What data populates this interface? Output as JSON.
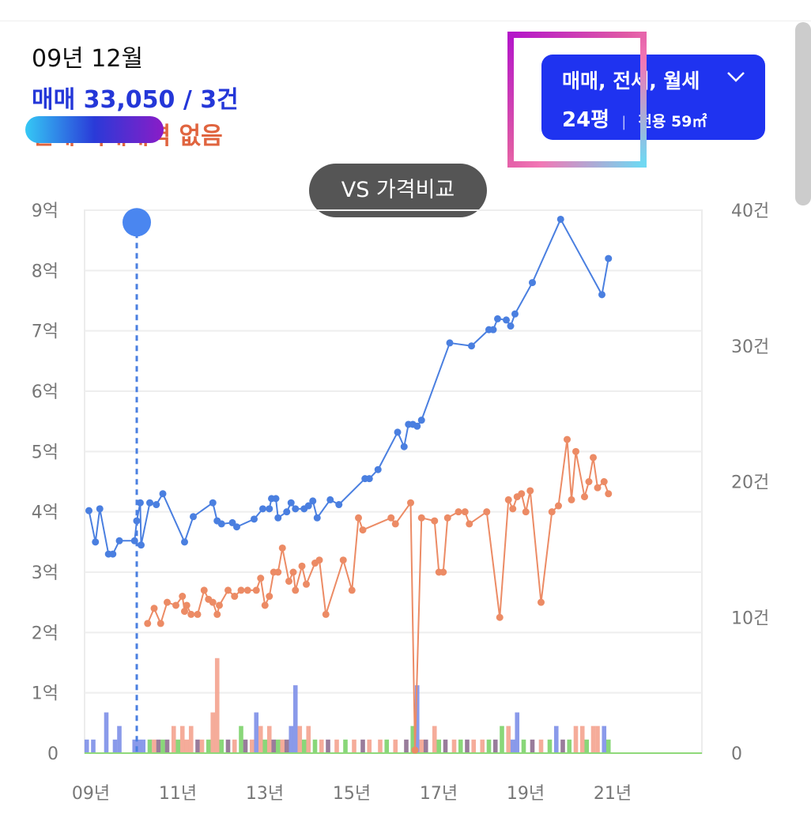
{
  "info": {
    "date": "09년 12월",
    "sale": "매매 33,050 / 3건",
    "jeonse": "전세 거래내역 없음"
  },
  "filter": {
    "types": "매매, 전세, 월세",
    "pyeong": "24평",
    "area": "전용 59㎡",
    "icon": "chevron-down-icon"
  },
  "vs_button": "VS 가격비교",
  "colors": {
    "sale": "#4a7fe0",
    "jeonse": "#ec8b65",
    "bar_sale": "#7d8fe8",
    "bar_jeonse": "#f4a38f",
    "bar_monthly": "#7cd36a",
    "bar_dark": "#8e6e90",
    "accent_button": "#1f33f0"
  },
  "chart_data": {
    "type": "line",
    "x_ticks": [
      "09년",
      "11년",
      "13년",
      "15년",
      "17년",
      "19년",
      "21년"
    ],
    "y_left_ticks": [
      "0",
      "1억",
      "2억",
      "3억",
      "4억",
      "5억",
      "6억",
      "7억",
      "8억",
      "9억"
    ],
    "y_right_ticks": [
      "0",
      "10건",
      "20건",
      "30건",
      "40건"
    ],
    "xlim": [
      2009.0,
      2023.2
    ],
    "ylim_left": [
      0,
      9
    ],
    "ylim_right": [
      0,
      40
    ],
    "grid": true,
    "cursor": {
      "x": 2010.2,
      "y": 8.8
    },
    "series": [
      {
        "key": "sale",
        "points": [
          [
            2009.1,
            4.02
          ],
          [
            2009.25,
            3.5
          ],
          [
            2009.35,
            4.05
          ],
          [
            2009.55,
            3.3
          ],
          [
            2009.65,
            3.3
          ],
          [
            2009.8,
            3.52
          ],
          [
            2010.15,
            3.52
          ],
          [
            2010.2,
            3.85
          ],
          [
            2010.28,
            4.15
          ],
          [
            2010.3,
            3.45
          ],
          [
            2010.5,
            4.15
          ],
          [
            2010.65,
            4.12
          ],
          [
            2010.8,
            4.3
          ],
          [
            2011.3,
            3.5
          ],
          [
            2011.5,
            3.92
          ],
          [
            2011.95,
            4.15
          ],
          [
            2012.05,
            3.85
          ],
          [
            2012.15,
            3.8
          ],
          [
            2012.4,
            3.82
          ],
          [
            2012.5,
            3.75
          ],
          [
            2012.9,
            3.88
          ],
          [
            2013.1,
            4.05
          ],
          [
            2013.25,
            4.05
          ],
          [
            2013.3,
            4.22
          ],
          [
            2013.4,
            4.22
          ],
          [
            2013.45,
            3.9
          ],
          [
            2013.65,
            4.0
          ],
          [
            2013.75,
            4.15
          ],
          [
            2013.85,
            4.05
          ],
          [
            2014.05,
            4.05
          ],
          [
            2014.15,
            4.1
          ],
          [
            2014.25,
            4.18
          ],
          [
            2014.35,
            3.9
          ],
          [
            2014.65,
            4.2
          ],
          [
            2014.85,
            4.12
          ],
          [
            2015.45,
            4.55
          ],
          [
            2015.55,
            4.55
          ],
          [
            2015.75,
            4.7
          ],
          [
            2016.2,
            5.32
          ],
          [
            2016.35,
            5.08
          ],
          [
            2016.45,
            5.45
          ],
          [
            2016.55,
            5.45
          ],
          [
            2016.65,
            5.42
          ],
          [
            2016.75,
            5.52
          ],
          [
            2017.4,
            6.8
          ],
          [
            2017.9,
            6.75
          ],
          [
            2018.3,
            7.02
          ],
          [
            2018.4,
            7.02
          ],
          [
            2018.5,
            7.2
          ],
          [
            2018.7,
            7.18
          ],
          [
            2018.8,
            7.08
          ],
          [
            2018.9,
            7.28
          ],
          [
            2019.3,
            7.8
          ],
          [
            2019.95,
            8.85
          ],
          [
            2020.9,
            7.6
          ],
          [
            2021.05,
            8.2
          ]
        ]
      },
      {
        "key": "jeonse",
        "points": [
          [
            2010.45,
            2.15
          ],
          [
            2010.6,
            2.4
          ],
          [
            2010.75,
            2.15
          ],
          [
            2010.9,
            2.5
          ],
          [
            2011.1,
            2.45
          ],
          [
            2011.25,
            2.6
          ],
          [
            2011.3,
            2.35
          ],
          [
            2011.35,
            2.45
          ],
          [
            2011.45,
            2.3
          ],
          [
            2011.6,
            2.3
          ],
          [
            2011.75,
            2.7
          ],
          [
            2011.85,
            2.55
          ],
          [
            2011.95,
            2.5
          ],
          [
            2012.05,
            2.3
          ],
          [
            2012.1,
            2.45
          ],
          [
            2012.3,
            2.7
          ],
          [
            2012.45,
            2.6
          ],
          [
            2012.6,
            2.7
          ],
          [
            2012.75,
            2.7
          ],
          [
            2012.95,
            2.7
          ],
          [
            2013.05,
            2.9
          ],
          [
            2013.15,
            2.45
          ],
          [
            2013.25,
            2.6
          ],
          [
            2013.35,
            3.0
          ],
          [
            2013.45,
            3.0
          ],
          [
            2013.55,
            3.4
          ],
          [
            2013.7,
            2.85
          ],
          [
            2013.8,
            3.0
          ],
          [
            2013.85,
            2.7
          ],
          [
            2014.0,
            3.1
          ],
          [
            2014.1,
            2.8
          ],
          [
            2014.3,
            3.15
          ],
          [
            2014.4,
            3.2
          ],
          [
            2014.55,
            2.3
          ],
          [
            2014.95,
            3.2
          ],
          [
            2015.15,
            2.7
          ],
          [
            2015.3,
            3.9
          ],
          [
            2015.4,
            3.7
          ],
          [
            2016.05,
            3.9
          ],
          [
            2016.15,
            3.8
          ],
          [
            2016.5,
            4.15
          ],
          [
            2016.6,
            0.05
          ],
          [
            2016.75,
            3.9
          ],
          [
            2017.05,
            3.85
          ],
          [
            2017.15,
            3.0
          ],
          [
            2017.25,
            3.0
          ],
          [
            2017.35,
            3.9
          ],
          [
            2017.6,
            4.0
          ],
          [
            2017.75,
            4.0
          ],
          [
            2017.85,
            3.8
          ],
          [
            2018.25,
            4.0
          ],
          [
            2018.55,
            2.25
          ],
          [
            2018.75,
            4.2
          ],
          [
            2018.85,
            4.05
          ],
          [
            2018.95,
            4.25
          ],
          [
            2019.05,
            4.3
          ],
          [
            2019.15,
            4.0
          ],
          [
            2019.25,
            4.35
          ],
          [
            2019.5,
            2.5
          ],
          [
            2019.75,
            4.0
          ],
          [
            2019.9,
            4.1
          ],
          [
            2020.1,
            5.2
          ],
          [
            2020.2,
            4.2
          ],
          [
            2020.3,
            5.0
          ],
          [
            2020.5,
            4.25
          ],
          [
            2020.6,
            4.5
          ],
          [
            2020.7,
            4.9
          ],
          [
            2020.8,
            4.4
          ],
          [
            2020.95,
            4.5
          ],
          [
            2021.05,
            4.3
          ]
        ]
      }
    ],
    "volume_bars": [
      {
        "x": 2009.05,
        "n": 1,
        "c": "sale"
      },
      {
        "x": 2009.2,
        "n": 1,
        "c": "sale"
      },
      {
        "x": 2009.5,
        "n": 3,
        "c": "sale"
      },
      {
        "x": 2009.7,
        "n": 1,
        "c": "sale"
      },
      {
        "x": 2009.8,
        "n": 2,
        "c": "sale"
      },
      {
        "x": 2010.15,
        "n": 1,
        "c": "sale"
      },
      {
        "x": 2010.25,
        "n": 1,
        "c": "sale"
      },
      {
        "x": 2010.35,
        "n": 1,
        "c": "sale"
      },
      {
        "x": 2010.5,
        "n": 1,
        "c": "monthly"
      },
      {
        "x": 2010.6,
        "n": 1,
        "c": "jeonse"
      },
      {
        "x": 2010.7,
        "n": 1,
        "c": "dark"
      },
      {
        "x": 2010.8,
        "n": 1,
        "c": "monthly"
      },
      {
        "x": 2010.9,
        "n": 1,
        "c": "dark"
      },
      {
        "x": 2011.05,
        "n": 2,
        "c": "jeonse"
      },
      {
        "x": 2011.15,
        "n": 1,
        "c": "monthly"
      },
      {
        "x": 2011.25,
        "n": 2,
        "c": "jeonse"
      },
      {
        "x": 2011.35,
        "n": 1,
        "c": "jeonse"
      },
      {
        "x": 2011.45,
        "n": 2,
        "c": "jeonse"
      },
      {
        "x": 2011.6,
        "n": 1,
        "c": "dark"
      },
      {
        "x": 2011.7,
        "n": 1,
        "c": "jeonse"
      },
      {
        "x": 2011.85,
        "n": 1,
        "c": "monthly"
      },
      {
        "x": 2011.95,
        "n": 3,
        "c": "jeonse"
      },
      {
        "x": 2012.05,
        "n": 7,
        "c": "jeonse"
      },
      {
        "x": 2012.15,
        "n": 1,
        "c": "monthly"
      },
      {
        "x": 2012.3,
        "n": 1,
        "c": "dark"
      },
      {
        "x": 2012.45,
        "n": 1,
        "c": "jeonse"
      },
      {
        "x": 2012.6,
        "n": 2,
        "c": "monthly"
      },
      {
        "x": 2012.7,
        "n": 1,
        "c": "dark"
      },
      {
        "x": 2012.85,
        "n": 1,
        "c": "jeonse"
      },
      {
        "x": 2012.95,
        "n": 3,
        "c": "sale"
      },
      {
        "x": 2013.05,
        "n": 2,
        "c": "jeonse"
      },
      {
        "x": 2013.15,
        "n": 1,
        "c": "monthly"
      },
      {
        "x": 2013.25,
        "n": 2,
        "c": "jeonse"
      },
      {
        "x": 2013.35,
        "n": 1,
        "c": "dark"
      },
      {
        "x": 2013.45,
        "n": 1,
        "c": "monthly"
      },
      {
        "x": 2013.55,
        "n": 1,
        "c": "jeonse"
      },
      {
        "x": 2013.65,
        "n": 1,
        "c": "dark"
      },
      {
        "x": 2013.75,
        "n": 2,
        "c": "sale"
      },
      {
        "x": 2013.85,
        "n": 5,
        "c": "sale"
      },
      {
        "x": 2013.95,
        "n": 2,
        "c": "jeonse"
      },
      {
        "x": 2014.05,
        "n": 1,
        "c": "monthly"
      },
      {
        "x": 2014.15,
        "n": 2,
        "c": "jeonse"
      },
      {
        "x": 2014.3,
        "n": 1,
        "c": "monthly"
      },
      {
        "x": 2014.45,
        "n": 1,
        "c": "jeonse"
      },
      {
        "x": 2014.6,
        "n": 1,
        "c": "dark"
      },
      {
        "x": 2014.8,
        "n": 1,
        "c": "jeonse"
      },
      {
        "x": 2015.0,
        "n": 1,
        "c": "monthly"
      },
      {
        "x": 2015.2,
        "n": 1,
        "c": "jeonse"
      },
      {
        "x": 2015.4,
        "n": 1,
        "c": "dark"
      },
      {
        "x": 2015.55,
        "n": 1,
        "c": "jeonse"
      },
      {
        "x": 2015.8,
        "n": 1,
        "c": "jeonse"
      },
      {
        "x": 2015.95,
        "n": 1,
        "c": "monthly"
      },
      {
        "x": 2016.15,
        "n": 1,
        "c": "jeonse"
      },
      {
        "x": 2016.4,
        "n": 1,
        "c": "dark"
      },
      {
        "x": 2016.55,
        "n": 2,
        "c": "monthly"
      },
      {
        "x": 2016.65,
        "n": 5,
        "c": "sale"
      },
      {
        "x": 2016.75,
        "n": 1,
        "c": "jeonse"
      },
      {
        "x": 2016.85,
        "n": 1,
        "c": "dark"
      },
      {
        "x": 2017.05,
        "n": 2,
        "c": "jeonse"
      },
      {
        "x": 2017.15,
        "n": 1,
        "c": "monthly"
      },
      {
        "x": 2017.3,
        "n": 1,
        "c": "dark"
      },
      {
        "x": 2017.5,
        "n": 1,
        "c": "jeonse"
      },
      {
        "x": 2017.65,
        "n": 1,
        "c": "monthly"
      },
      {
        "x": 2017.8,
        "n": 1,
        "c": "dark"
      },
      {
        "x": 2017.95,
        "n": 1,
        "c": "jeonse"
      },
      {
        "x": 2018.15,
        "n": 1,
        "c": "jeonse"
      },
      {
        "x": 2018.3,
        "n": 1,
        "c": "monthly"
      },
      {
        "x": 2018.45,
        "n": 1,
        "c": "dark"
      },
      {
        "x": 2018.6,
        "n": 2,
        "c": "monthly"
      },
      {
        "x": 2018.75,
        "n": 2,
        "c": "jeonse"
      },
      {
        "x": 2018.85,
        "n": 1,
        "c": "sale"
      },
      {
        "x": 2018.95,
        "n": 3,
        "c": "sale"
      },
      {
        "x": 2019.1,
        "n": 1,
        "c": "monthly"
      },
      {
        "x": 2019.3,
        "n": 1,
        "c": "dark"
      },
      {
        "x": 2019.5,
        "n": 1,
        "c": "jeonse"
      },
      {
        "x": 2019.7,
        "n": 1,
        "c": "monthly"
      },
      {
        "x": 2019.85,
        "n": 2,
        "c": "sale"
      },
      {
        "x": 2020.0,
        "n": 1,
        "c": "dark"
      },
      {
        "x": 2020.15,
        "n": 1,
        "c": "monthly"
      },
      {
        "x": 2020.3,
        "n": 2,
        "c": "jeonse"
      },
      {
        "x": 2020.45,
        "n": 2,
        "c": "jeonse"
      },
      {
        "x": 2020.55,
        "n": 1,
        "c": "monthly"
      },
      {
        "x": 2020.7,
        "n": 2,
        "c": "jeonse"
      },
      {
        "x": 2020.8,
        "n": 2,
        "c": "jeonse"
      },
      {
        "x": 2020.95,
        "n": 2,
        "c": "sale"
      },
      {
        "x": 2021.05,
        "n": 1,
        "c": "monthly"
      }
    ]
  }
}
